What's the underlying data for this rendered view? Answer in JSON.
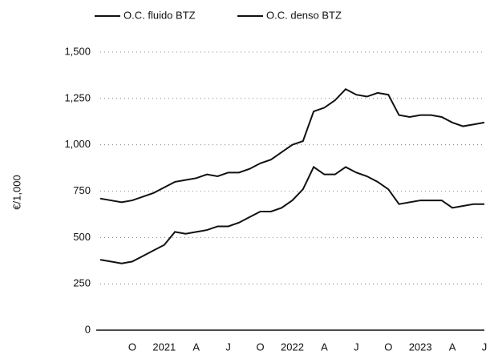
{
  "chart_data": {
    "type": "line",
    "y_label": "€/1,000",
    "categories": [
      null,
      null,
      null,
      "O",
      null,
      null,
      "2021",
      null,
      null,
      "A",
      null,
      null,
      "J",
      null,
      null,
      "O",
      null,
      null,
      "2022",
      null,
      null,
      "A",
      null,
      null,
      "J",
      null,
      null,
      "O",
      null,
      null,
      "2023",
      null,
      null,
      "A",
      null,
      null,
      "J"
    ],
    "series": [
      {
        "name": "O.C. fluido BTZ",
        "color": "#111111",
        "values": [
          710,
          700,
          690,
          700,
          720,
          740,
          770,
          800,
          810,
          820,
          840,
          830,
          850,
          850,
          870,
          900,
          920,
          960,
          1000,
          1020,
          1180,
          1200,
          1240,
          1300,
          1270,
          1260,
          1280,
          1270,
          1160,
          1150,
          1160,
          1160,
          1150,
          1120,
          1100,
          1110,
          1120
        ]
      },
      {
        "name": "O.C. denso BTZ",
        "color": "#111111",
        "values": [
          380,
          370,
          360,
          370,
          400,
          430,
          460,
          530,
          520,
          530,
          540,
          560,
          560,
          580,
          610,
          640,
          640,
          660,
          700,
          760,
          880,
          840,
          840,
          880,
          850,
          830,
          800,
          760,
          680,
          690,
          700,
          700,
          700,
          660,
          670,
          680,
          680
        ]
      }
    ],
    "ylim": [
      0,
      1500
    ],
    "yticks": [
      0,
      250,
      500,
      750,
      {
        "value": 1000,
        "label": "1,000"
      },
      {
        "value": 1250,
        "label": "1,250"
      },
      {
        "value": 1500,
        "label": "1,500"
      }
    ],
    "grid": true
  }
}
